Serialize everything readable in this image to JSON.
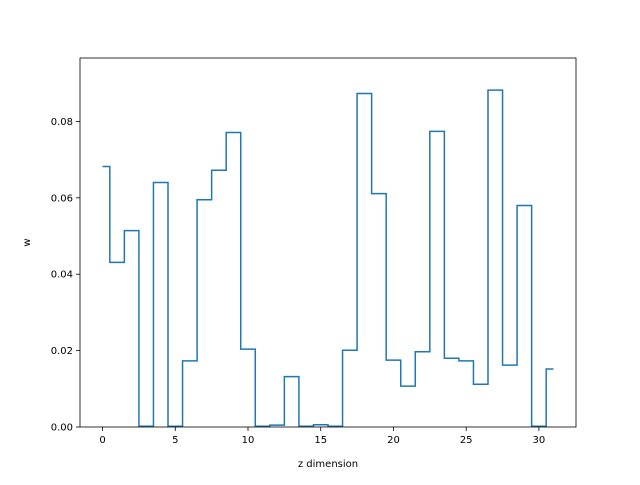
{
  "chart_data": {
    "type": "line",
    "drawstyle": "steps-mid",
    "title": "",
    "xlabel": "z dimension",
    "ylabel": "w",
    "xlim": [
      -1.55,
      32.55
    ],
    "ylim": [
      0,
      0.0966
    ],
    "xticks": [
      0,
      5,
      10,
      15,
      20,
      25,
      30
    ],
    "yticks": [
      0.0,
      0.02,
      0.04,
      0.06,
      0.08
    ],
    "ytick_labels": [
      "0.00",
      "0.02",
      "0.04",
      "0.06",
      "0.08"
    ],
    "grid": false,
    "legend": false,
    "series": [
      {
        "color": "#1f77b4",
        "x": [
          0,
          1,
          2,
          3,
          4,
          5,
          6,
          7,
          8,
          9,
          10,
          11,
          12,
          13,
          14,
          15,
          16,
          17,
          18,
          19,
          20,
          21,
          22,
          23,
          24,
          25,
          26,
          27,
          28,
          29,
          30,
          31
        ],
        "y": [
          0.0682,
          0.0431,
          0.0514,
          0.0002,
          0.064,
          0.0002,
          0.0173,
          0.0595,
          0.0672,
          0.0771,
          0.0204,
          0.0002,
          0.0005,
          0.0132,
          0.0002,
          0.0006,
          0.0002,
          0.0201,
          0.0873,
          0.0611,
          0.0175,
          0.0107,
          0.0197,
          0.0774,
          0.018,
          0.0173,
          0.0112,
          0.0882,
          0.0162,
          0.058,
          0.0002,
          0.0152
        ]
      }
    ]
  }
}
